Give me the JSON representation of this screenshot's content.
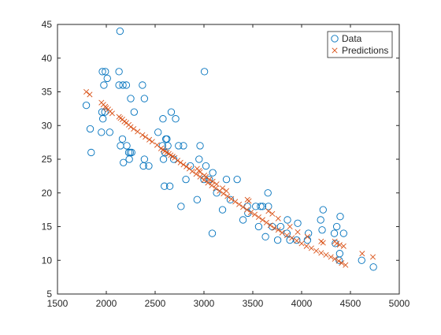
{
  "chart_data": {
    "type": "scatter",
    "xlim": [
      1500,
      5000
    ],
    "ylim": [
      5,
      45
    ],
    "xticks": [
      1500,
      2000,
      2500,
      3000,
      3500,
      4000,
      4500,
      5000
    ],
    "yticks": [
      5,
      10,
      15,
      20,
      25,
      30,
      35,
      40,
      45
    ],
    "grid": false,
    "legend_position": "top-right",
    "series": [
      {
        "name": "Data",
        "marker": "circle",
        "color": "#0072BD",
        "points": [
          [
            1795,
            33
          ],
          [
            1835,
            29.5
          ],
          [
            1845,
            26
          ],
          [
            1950,
            29
          ],
          [
            1955,
            32
          ],
          [
            1960,
            38
          ],
          [
            1965,
            31
          ],
          [
            1975,
            36
          ],
          [
            1985,
            32
          ],
          [
            1990,
            38
          ],
          [
            2010,
            37
          ],
          [
            2035,
            29
          ],
          [
            2130,
            38
          ],
          [
            2130,
            36
          ],
          [
            2140,
            44
          ],
          [
            2145,
            27
          ],
          [
            2165,
            28
          ],
          [
            2170,
            36
          ],
          [
            2175,
            24.5
          ],
          [
            2205,
            36
          ],
          [
            2210,
            27
          ],
          [
            2230,
            26
          ],
          [
            2235,
            25
          ],
          [
            2245,
            26
          ],
          [
            2250,
            34
          ],
          [
            2260,
            26
          ],
          [
            2285,
            32
          ],
          [
            2370,
            36
          ],
          [
            2380,
            24
          ],
          [
            2390,
            34
          ],
          [
            2390,
            25
          ],
          [
            2435,
            24
          ],
          [
            2530,
            29
          ],
          [
            2575,
            27
          ],
          [
            2580,
            31
          ],
          [
            2585,
            25
          ],
          [
            2595,
            21
          ],
          [
            2600,
            26
          ],
          [
            2610,
            28
          ],
          [
            2620,
            28
          ],
          [
            2630,
            27
          ],
          [
            2650,
            21
          ],
          [
            2665,
            32
          ],
          [
            2690,
            25
          ],
          [
            2710,
            31
          ],
          [
            2740,
            27
          ],
          [
            2765,
            18
          ],
          [
            2790,
            27
          ],
          [
            2815,
            22
          ],
          [
            2860,
            24
          ],
          [
            2930,
            19
          ],
          [
            2950,
            25
          ],
          [
            2960,
            27
          ],
          [
            3000,
            22
          ],
          [
            3005,
            38
          ],
          [
            3020,
            24
          ],
          [
            3055,
            22
          ],
          [
            3085,
            14
          ],
          [
            3090,
            23
          ],
          [
            3130,
            20
          ],
          [
            3190,
            17.5
          ],
          [
            3230,
            22
          ],
          [
            3270,
            19
          ],
          [
            3340,
            22
          ],
          [
            3400,
            16
          ],
          [
            3445,
            18
          ],
          [
            3450,
            17
          ],
          [
            3530,
            18
          ],
          [
            3560,
            15
          ],
          [
            3580,
            18
          ],
          [
            3600,
            18
          ],
          [
            3630,
            13.5
          ],
          [
            3655,
            20
          ],
          [
            3660,
            18
          ],
          [
            3700,
            15
          ],
          [
            3755,
            13
          ],
          [
            3785,
            15
          ],
          [
            3850,
            14
          ],
          [
            3855,
            16
          ],
          [
            3880,
            13
          ],
          [
            3950,
            13
          ],
          [
            3960,
            15.5
          ],
          [
            4060,
            13
          ],
          [
            4070,
            14
          ],
          [
            4195,
            16
          ],
          [
            4210,
            14.5
          ],
          [
            4220,
            17.5
          ],
          [
            4335,
            14
          ],
          [
            4345,
            12.5
          ],
          [
            4360,
            15
          ],
          [
            4385,
            10
          ],
          [
            4390,
            11
          ],
          [
            4395,
            16.5
          ],
          [
            4430,
            14
          ],
          [
            4615,
            10
          ],
          [
            4735,
            9
          ]
        ]
      },
      {
        "name": "Predictions",
        "marker": "x",
        "color": "#D95319",
        "points": [
          [
            1795,
            35
          ],
          [
            1830,
            34.6
          ],
          [
            1950,
            33.4
          ],
          [
            1970,
            33.1
          ],
          [
            1990,
            32.8
          ],
          [
            2000,
            32.6
          ],
          [
            2020,
            32.4
          ],
          [
            2040,
            32.1
          ],
          [
            2060,
            31.8
          ],
          [
            2130,
            31.3
          ],
          [
            2145,
            31.1
          ],
          [
            2165,
            30.9
          ],
          [
            2185,
            30.6
          ],
          [
            2205,
            30.4
          ],
          [
            2230,
            30.1
          ],
          [
            2250,
            29.8
          ],
          [
            2280,
            29.5
          ],
          [
            2320,
            29.1
          ],
          [
            2370,
            28.6
          ],
          [
            2400,
            28.3
          ],
          [
            2440,
            27.9
          ],
          [
            2470,
            27.6
          ],
          [
            2520,
            27.1
          ],
          [
            2560,
            26.6
          ],
          [
            2580,
            26.4
          ],
          [
            2600,
            26.2
          ],
          [
            2620,
            26.0
          ],
          [
            2640,
            25.8
          ],
          [
            2660,
            25.6
          ],
          [
            2680,
            25.4
          ],
          [
            2700,
            25.2
          ],
          [
            2730,
            24.8
          ],
          [
            2760,
            24.5
          ],
          [
            2790,
            24.2
          ],
          [
            2820,
            23.9
          ],
          [
            2850,
            23.6
          ],
          [
            2880,
            23.2
          ],
          [
            2920,
            22.8
          ],
          [
            2960,
            22.4
          ],
          [
            3000,
            21.9
          ],
          [
            3040,
            21.5
          ],
          [
            3080,
            21.1
          ],
          [
            3120,
            20.7
          ],
          [
            3160,
            20.3
          ],
          [
            3200,
            19.9
          ],
          [
            3240,
            19.5
          ],
          [
            3280,
            19.1
          ],
          [
            3320,
            18.7
          ],
          [
            3360,
            18.3
          ],
          [
            3400,
            17.9
          ],
          [
            3440,
            17.5
          ],
          [
            3480,
            17.1
          ],
          [
            3520,
            16.8
          ],
          [
            3560,
            16.4
          ],
          [
            3600,
            16.0
          ],
          [
            3640,
            15.6
          ],
          [
            3680,
            15.2
          ],
          [
            3720,
            14.8
          ],
          [
            3760,
            14.5
          ],
          [
            3800,
            14.1
          ],
          [
            3850,
            13.7
          ],
          [
            3900,
            13.3
          ],
          [
            3950,
            12.9
          ],
          [
            4000,
            12.5
          ],
          [
            4050,
            12.1
          ],
          [
            4100,
            11.8
          ],
          [
            4150,
            11.4
          ],
          [
            4200,
            11.1
          ],
          [
            4250,
            10.8
          ],
          [
            4300,
            10.5
          ],
          [
            4340,
            10.2
          ],
          [
            4380,
            9.9
          ],
          [
            4410,
            9.6
          ],
          [
            4450,
            9.3
          ],
          [
            4620,
            11
          ],
          [
            4730,
            10.5
          ],
          [
            3445,
            19
          ],
          [
            3460,
            18.8
          ],
          [
            3660,
            17.3
          ],
          [
            3700,
            16.9
          ],
          [
            3760,
            16.2
          ],
          [
            3880,
            15
          ],
          [
            3960,
            14.2
          ],
          [
            4060,
            13.5
          ],
          [
            4200,
            12.8
          ],
          [
            4220,
            12.6
          ],
          [
            4340,
            12.8
          ],
          [
            4360,
            12.5
          ],
          [
            4390,
            12.3
          ],
          [
            4430,
            12.1
          ],
          [
            2930,
            23.6
          ],
          [
            2950,
            23.3
          ],
          [
            2960,
            23.1
          ],
          [
            3005,
            22.6
          ],
          [
            3020,
            22.4
          ],
          [
            3055,
            22.0
          ],
          [
            3090,
            21.7
          ],
          [
            3130,
            21.3
          ],
          [
            3190,
            20.7
          ],
          [
            3230,
            20.3
          ]
        ]
      }
    ]
  }
}
